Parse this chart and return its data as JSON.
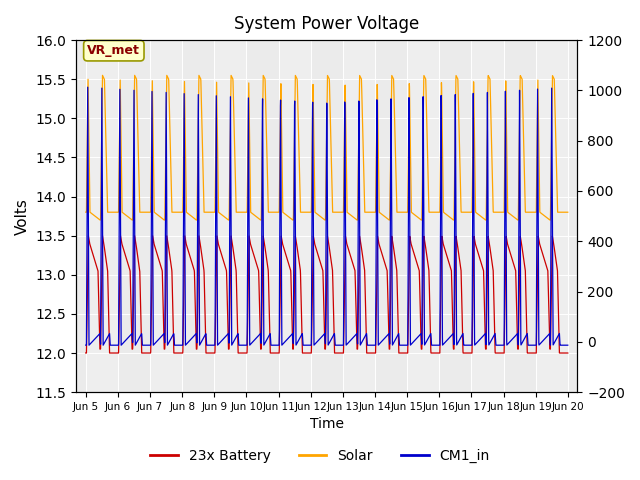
{
  "title": "System Power Voltage",
  "xlabel": "Time",
  "ylabel": "Volts",
  "ylim_left": [
    11.5,
    16.0
  ],
  "ylim_right": [
    -200,
    1200
  ],
  "yticks_left": [
    11.5,
    12.0,
    12.5,
    13.0,
    13.5,
    14.0,
    14.5,
    15.0,
    15.5,
    16.0
  ],
  "yticks_right": [
    -200,
    0,
    200,
    400,
    600,
    800,
    1000,
    1200
  ],
  "xtick_positions": [
    5,
    6,
    7,
    8,
    9,
    10,
    11,
    12,
    13,
    14,
    15,
    16,
    17,
    18,
    19,
    20
  ],
  "xtick_labels": [
    "Jun 5",
    "Jun 6",
    "Jun 7",
    "Jun 8",
    "Jun 9",
    "Jun 10",
    "Jun 11",
    "Jun 12",
    "Jun 13",
    "Jun 14",
    "Jun 15",
    "Jun 16",
    "Jun 17",
    "Jun 18",
    "Jun 19",
    "Jun 20"
  ],
  "xlim": [
    4.7,
    20.3
  ],
  "battery_color": "#CC0000",
  "solar_color": "#FFA500",
  "cm1_color": "#0000CC",
  "annotation_text": "VR_met",
  "annotation_color": "#8B0000",
  "annotation_bg": "#FFFFCC",
  "annotation_edge": "#999900",
  "bg_color": "#EBEBEB",
  "legend_items": [
    "23x Battery",
    "Solar",
    "CM1_in"
  ],
  "legend_colors": [
    "#CC0000",
    "#FFA500",
    "#0000CC"
  ]
}
